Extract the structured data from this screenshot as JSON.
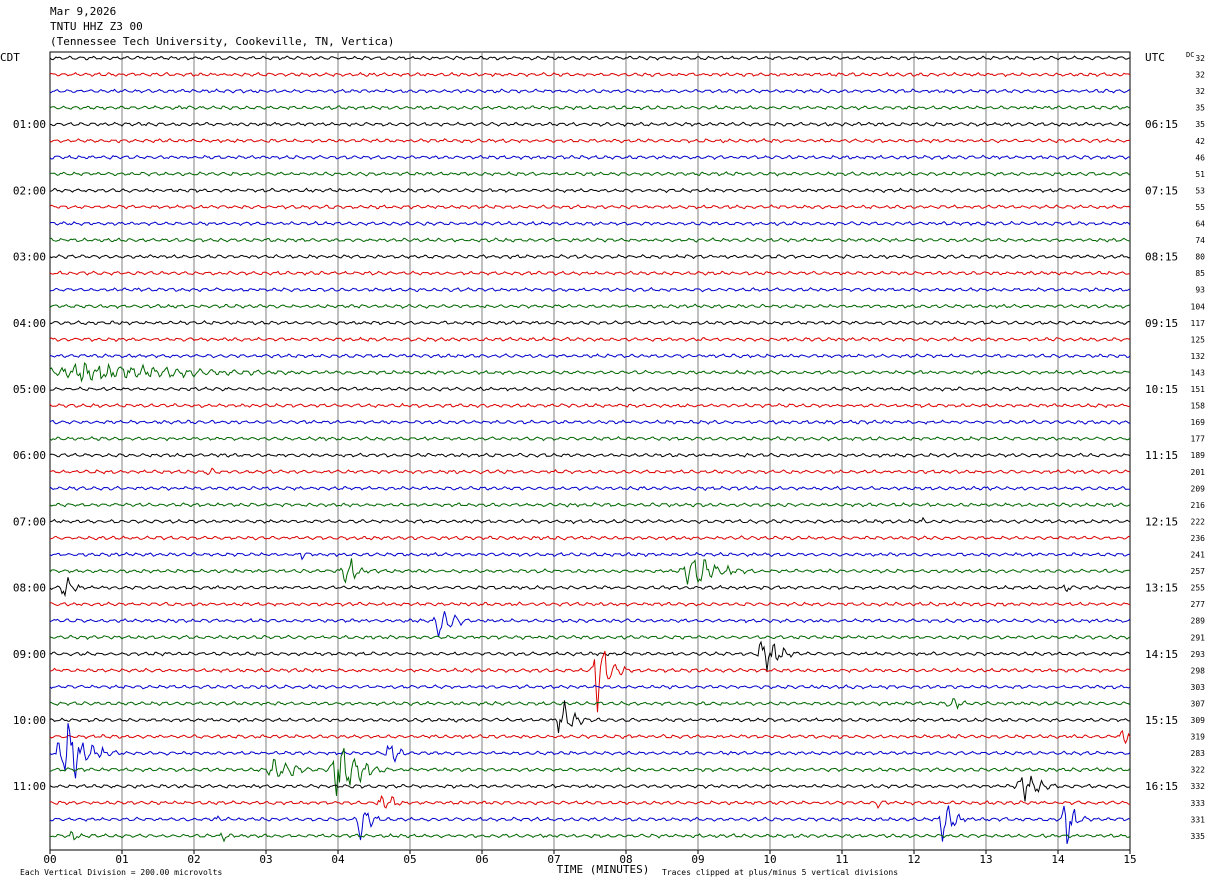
{
  "header": {
    "date": "Mar 9,2026",
    "station": "TNTU HHZ Z3 00",
    "location": "(Tennessee Tech University, Cookeville, TN, Vertica)"
  },
  "labels": {
    "left_timezone": "CDT",
    "right_timezone": "UTC",
    "dc_header": "DC",
    "footer_left": "Each Vertical Division =  200.00 microvolts",
    "footer_center": "TIME (MINUTES)",
    "footer_right": "Traces clipped at plus/minus 5 vertical divisions"
  },
  "colors": {
    "trace_cycle": [
      "#000000",
      "#dd0000",
      "#0000cc",
      "#006600"
    ],
    "grid": "#808080",
    "text": "#000000"
  },
  "chart_data": {
    "type": "line",
    "title": "",
    "xlabel": "TIME (MINUTES)",
    "ylabel": "",
    "xlim": [
      0,
      15
    ],
    "x_ticks": [
      "00",
      "01",
      "02",
      "03",
      "04",
      "05",
      "06",
      "07",
      "08",
      "09",
      "10",
      "11",
      "12",
      "13",
      "14",
      "15"
    ],
    "rows": 48,
    "minutes_per_row": 15,
    "left_hour_labels": [
      {
        "row": 4,
        "label": "01:00"
      },
      {
        "row": 8,
        "label": "02:00"
      },
      {
        "row": 12,
        "label": "03:00"
      },
      {
        "row": 16,
        "label": "04:00"
      },
      {
        "row": 20,
        "label": "05:00"
      },
      {
        "row": 24,
        "label": "06:00"
      },
      {
        "row": 28,
        "label": "07:00"
      },
      {
        "row": 32,
        "label": "08:00"
      },
      {
        "row": 36,
        "label": "09:00"
      },
      {
        "row": 40,
        "label": "10:00"
      },
      {
        "row": 44,
        "label": "11:00"
      }
    ],
    "right_hour_labels": [
      {
        "row": 4,
        "label": "06:15"
      },
      {
        "row": 8,
        "label": "07:15"
      },
      {
        "row": 12,
        "label": "08:15"
      },
      {
        "row": 16,
        "label": "09:15"
      },
      {
        "row": 20,
        "label": "10:15"
      },
      {
        "row": 24,
        "label": "11:15"
      },
      {
        "row": 28,
        "label": "12:15"
      },
      {
        "row": 32,
        "label": "13:15"
      },
      {
        "row": 36,
        "label": "14:15"
      },
      {
        "row": 40,
        "label": "15:15"
      },
      {
        "row": 44,
        "label": "16:15"
      }
    ],
    "dc_offsets": [
      32,
      32,
      32,
      35,
      35,
      42,
      46,
      51,
      53,
      55,
      64,
      74,
      80,
      85,
      93,
      104,
      117,
      125,
      132,
      143,
      151,
      158,
      169,
      177,
      189,
      201,
      209,
      216,
      222,
      236,
      241,
      257,
      255,
      277,
      289,
      291,
      293,
      298,
      303,
      307,
      309,
      319,
      283,
      322,
      332,
      333,
      331,
      335
    ],
    "events": [
      {
        "row": 19,
        "minute": 0.5,
        "amplitude": 1.2,
        "duration_min": 5.5
      },
      {
        "row": 25,
        "minute": 2.2,
        "amplitude": 0.8,
        "duration_min": 0.3
      },
      {
        "row": 28,
        "minute": 12.1,
        "amplitude": 0.6,
        "duration_min": 0.3
      },
      {
        "row": 30,
        "minute": 3.5,
        "amplitude": 0.7,
        "duration_min": 0.3
      },
      {
        "row": 31,
        "minute": 4.1,
        "amplitude": 2.2,
        "duration_min": 0.6
      },
      {
        "row": 31,
        "minute": 8.9,
        "amplitude": 2.5,
        "duration_min": 1.2
      },
      {
        "row": 32,
        "minute": 0.2,
        "amplitude": 2.2,
        "duration_min": 0.4
      },
      {
        "row": 32,
        "minute": 14.1,
        "amplitude": 0.8,
        "duration_min": 0.3
      },
      {
        "row": 34,
        "minute": 5.4,
        "amplitude": 2.5,
        "duration_min": 0.6
      },
      {
        "row": 36,
        "minute": 9.9,
        "amplitude": 3.2,
        "duration_min": 0.6
      },
      {
        "row": 37,
        "minute": 7.6,
        "amplitude": 4.5,
        "duration_min": 0.6
      },
      {
        "row": 39,
        "minute": 12.5,
        "amplitude": 1.6,
        "duration_min": 0.4
      },
      {
        "row": 40,
        "minute": 7.1,
        "amplitude": 3.2,
        "duration_min": 0.5
      },
      {
        "row": 41,
        "minute": 14.9,
        "amplitude": 2.0,
        "duration_min": 0.3
      },
      {
        "row": 41,
        "minute": 12.6,
        "amplitude": 0.8,
        "duration_min": 0.2
      },
      {
        "row": 42,
        "minute": 0.2,
        "amplitude": 4.5,
        "duration_min": 0.9
      },
      {
        "row": 42,
        "minute": 4.7,
        "amplitude": 2.0,
        "duration_min": 0.4
      },
      {
        "row": 43,
        "minute": 3.1,
        "amplitude": 2.5,
        "duration_min": 0.8
      },
      {
        "row": 43,
        "minute": 4.0,
        "amplitude": 4.0,
        "duration_min": 0.9
      },
      {
        "row": 44,
        "minute": 13.5,
        "amplitude": 2.0,
        "duration_min": 0.8
      },
      {
        "row": 45,
        "minute": 4.6,
        "amplitude": 1.6,
        "duration_min": 0.6
      },
      {
        "row": 45,
        "minute": 11.5,
        "amplitude": 0.6,
        "duration_min": 0.3
      },
      {
        "row": 46,
        "minute": 4.3,
        "amplitude": 3.0,
        "duration_min": 0.4
      },
      {
        "row": 46,
        "minute": 12.4,
        "amplitude": 4.0,
        "duration_min": 0.4
      },
      {
        "row": 46,
        "minute": 14.1,
        "amplitude": 4.0,
        "duration_min": 0.4
      },
      {
        "row": 46,
        "minute": 2.3,
        "amplitude": 0.8,
        "duration_min": 0.2
      },
      {
        "row": 47,
        "minute": 0.3,
        "amplitude": 1.0,
        "duration_min": 0.3
      },
      {
        "row": 47,
        "minute": 2.4,
        "amplitude": 1.0,
        "duration_min": 0.3
      }
    ]
  }
}
